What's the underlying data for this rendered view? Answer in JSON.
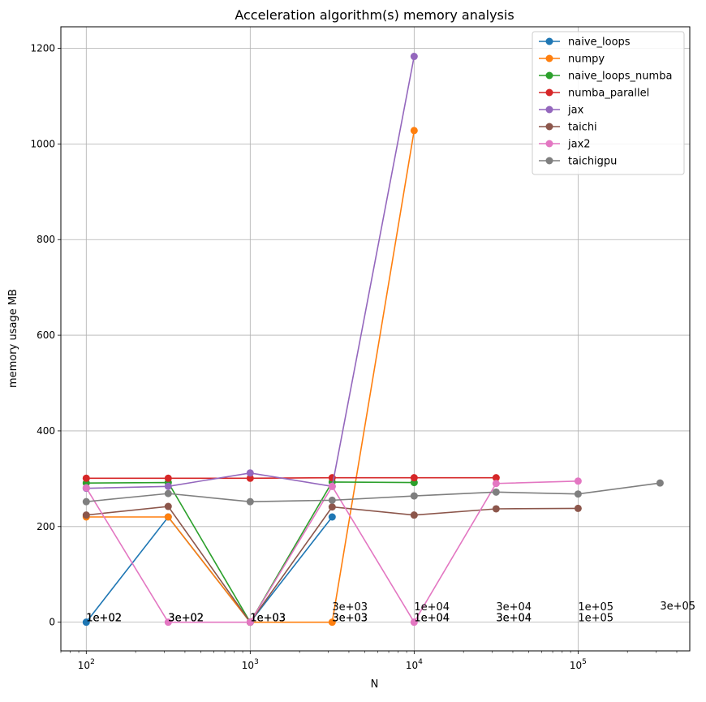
{
  "chart_data": {
    "type": "line",
    "title": "Acceleration algorithm(s) memory analysis",
    "xlabel": "N",
    "ylabel": "memory usage MB",
    "xscale": "log",
    "xlim": [
      70,
      480000
    ],
    "ylim": [
      -60,
      1245
    ],
    "x": [
      100,
      316.2,
      1000,
      3162,
      10000,
      31623,
      100000,
      316228
    ],
    "xticks": [
      {
        "value": 100,
        "base": "10",
        "exp": "2"
      },
      {
        "value": 1000,
        "base": "10",
        "exp": "3"
      },
      {
        "value": 10000,
        "base": "10",
        "exp": "4"
      },
      {
        "value": 100000,
        "base": "10",
        "exp": "5"
      }
    ],
    "yticks": [
      0,
      200,
      400,
      600,
      800,
      1000,
      1200
    ],
    "grid": true,
    "legend_position": "top-right",
    "series": [
      {
        "name": "naive_loops",
        "color": "#1f77b4",
        "x": [
          100,
          316.2,
          1000,
          3162
        ],
        "y": [
          0,
          220,
          0,
          220
        ]
      },
      {
        "name": "numpy",
        "color": "#ff7f0e",
        "x": [
          100,
          316.2,
          1000,
          3162,
          10000
        ],
        "y": [
          220,
          220,
          0,
          0,
          1028
        ]
      },
      {
        "name": "naive_loops_numba",
        "color": "#2ca02c",
        "x": [
          100,
          316.2,
          1000,
          3162,
          10000
        ],
        "y": [
          291,
          292,
          0,
          293,
          292
        ]
      },
      {
        "name": "numba_parallel",
        "color": "#d62728",
        "x": [
          100,
          316.2,
          1000,
          3162,
          10000,
          31623
        ],
        "y": [
          301,
          301,
          301,
          302,
          302,
          302
        ]
      },
      {
        "name": "jax",
        "color": "#9467bd",
        "x": [
          100,
          316.2,
          1000,
          3162,
          10000
        ],
        "y": [
          280,
          284,
          312,
          284,
          1183
        ]
      },
      {
        "name": "taichi",
        "color": "#8c564b",
        "x": [
          100,
          316.2,
          1000,
          3162,
          10000,
          31623,
          100000
        ],
        "y": [
          224,
          242,
          0,
          241,
          224,
          237,
          238
        ]
      },
      {
        "name": "jax2",
        "color": "#e377c2",
        "x": [
          100,
          316.2,
          1000,
          3162,
          10000,
          31623,
          100000
        ],
        "y": [
          281,
          0,
          0,
          284,
          0,
          290,
          295
        ]
      },
      {
        "name": "taichigpu",
        "color": "#7f7f7f",
        "x": [
          100,
          316.2,
          1000,
          3162,
          10000,
          31623,
          100000,
          316228
        ],
        "y": [
          252,
          269,
          252,
          255,
          264,
          272,
          268,
          291
        ]
      }
    ],
    "annotations": [
      {
        "text": "1e+02",
        "x": 100,
        "y": 0
      },
      {
        "text": "1e+02",
        "x": 100,
        "y": 0
      },
      {
        "text": "1e+02",
        "x": 100,
        "y": 0
      },
      {
        "text": "3e+02",
        "x": 316.2,
        "y": 0
      },
      {
        "text": "3e+02",
        "x": 316.2,
        "y": 0
      },
      {
        "text": "3e+02",
        "x": 316.2,
        "y": 0
      },
      {
        "text": "1e+03",
        "x": 1000,
        "y": 0
      },
      {
        "text": "1e+03",
        "x": 1000,
        "y": 0
      },
      {
        "text": "1e+03",
        "x": 1000,
        "y": 0
      },
      {
        "text": "3e+03",
        "x": 3162,
        "y": 23
      },
      {
        "text": "3e+03",
        "x": 3162,
        "y": 0
      },
      {
        "text": "3e+03",
        "x": 3162,
        "y": 0
      },
      {
        "text": "1e+04",
        "x": 10000,
        "y": 23
      },
      {
        "text": "1e+04",
        "x": 10000,
        "y": 0
      },
      {
        "text": "1e+04",
        "x": 10000,
        "y": 0
      },
      {
        "text": "3e+04",
        "x": 31623,
        "y": 23
      },
      {
        "text": "3e+04",
        "x": 31623,
        "y": 0
      },
      {
        "text": "3e+04",
        "x": 31623,
        "y": 0
      },
      {
        "text": "1e+05",
        "x": 100000,
        "y": 23
      },
      {
        "text": "1e+05",
        "x": 100000,
        "y": 0
      },
      {
        "text": "3e+05",
        "x": 316228,
        "y": 25
      }
    ]
  }
}
